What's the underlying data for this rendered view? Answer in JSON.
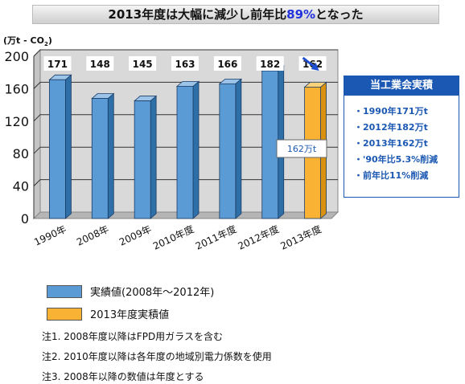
{
  "title": {
    "pre": "2013年度は大幅に減少し前年比",
    "highlight": "89%",
    "post": "となった",
    "highlight_color": "#2233dd"
  },
  "chart_data": {
    "type": "bar",
    "categories": [
      "1990年",
      "2008年",
      "2009年",
      "2010年度",
      "2011年度",
      "2012年度",
      "2013年度"
    ],
    "values": [
      171,
      148,
      145,
      163,
      166,
      182,
      162
    ],
    "ylim": [
      0,
      200
    ],
    "yticks": [
      0,
      40,
      80,
      120,
      160,
      200
    ],
    "unit": {
      "main": "(万t - CO",
      "sub": "2",
      "close": ")"
    },
    "grid": true,
    "colors": {
      "blue": "#5b9bd5",
      "orange": "#f9b233"
    },
    "annotation": "162万t"
  },
  "info": {
    "title": "当工業会実積",
    "items": [
      "・1990年171万t",
      "・2012年182万t",
      "・2013年162万t",
      "・'90年比5.3%削減",
      "・前年比11%削減"
    ]
  },
  "legend": [
    {
      "label": "実績値(2008年～2012年)",
      "color": "#5b9bd5"
    },
    {
      "label": "2013年度実積値",
      "color": "#f9b233"
    }
  ],
  "notes": [
    "注1. 2008年度以降はFPD用ガラスを含む",
    "注2. 2010年度以降は各年度の地域別電力係数を使用",
    "注3. 2008年以降の数値は年度とする"
  ]
}
